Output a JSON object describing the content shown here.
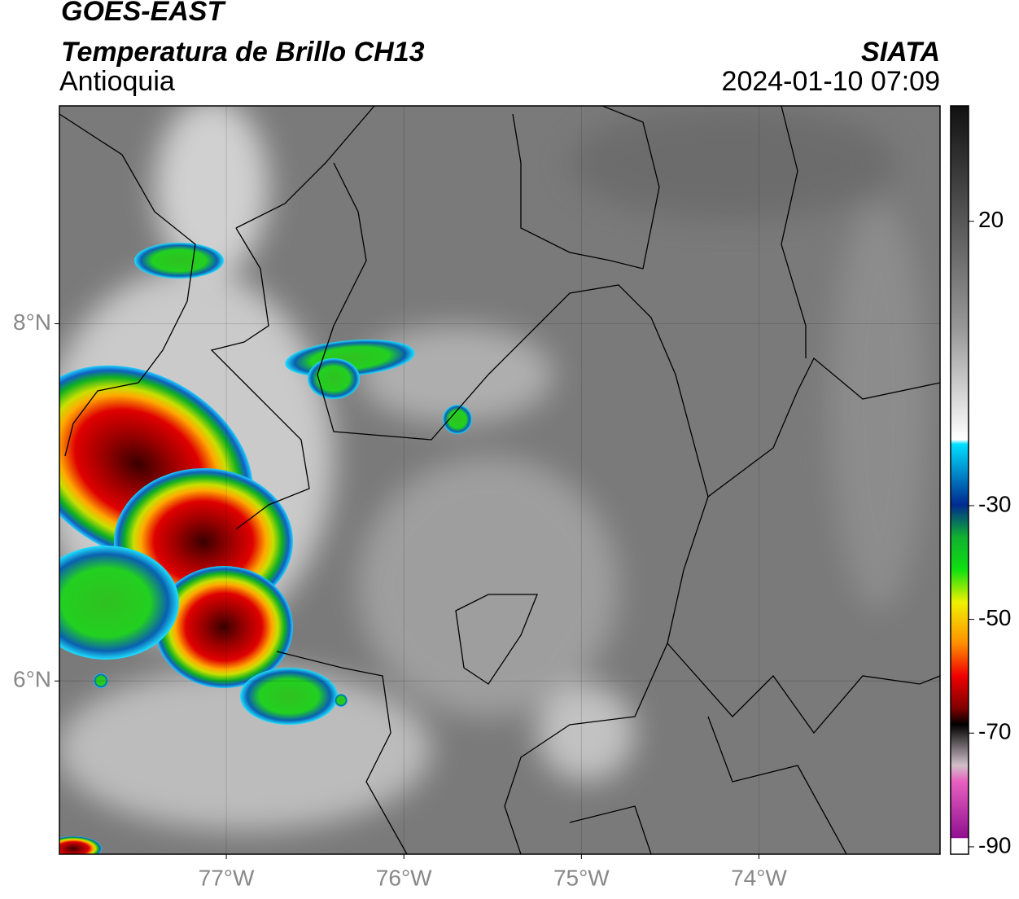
{
  "header": {
    "satellite": "GOES-EAST",
    "product": "Temperatura de Brillo CH13",
    "region": "Antioquia",
    "source": "SIATA",
    "datetime": "2024-01-10 07:09"
  },
  "map": {
    "xlim": [
      -77.94,
      -72.98
    ],
    "ylim": [
      5.03,
      9.22
    ],
    "xticks": [
      {
        "value": -77,
        "label": "77°W"
      },
      {
        "value": -76,
        "label": "76°W"
      },
      {
        "value": -75,
        "label": "75°W"
      },
      {
        "value": -74,
        "label": "74°W"
      }
    ],
    "yticks": [
      {
        "value": 6,
        "label": "6°N"
      },
      {
        "value": 8,
        "label": "8°N"
      }
    ]
  },
  "colorbar": {
    "lim": [
      -91.3,
      40.3
    ],
    "ticks": [
      20,
      -30,
      -50,
      -70,
      -90
    ]
  }
}
